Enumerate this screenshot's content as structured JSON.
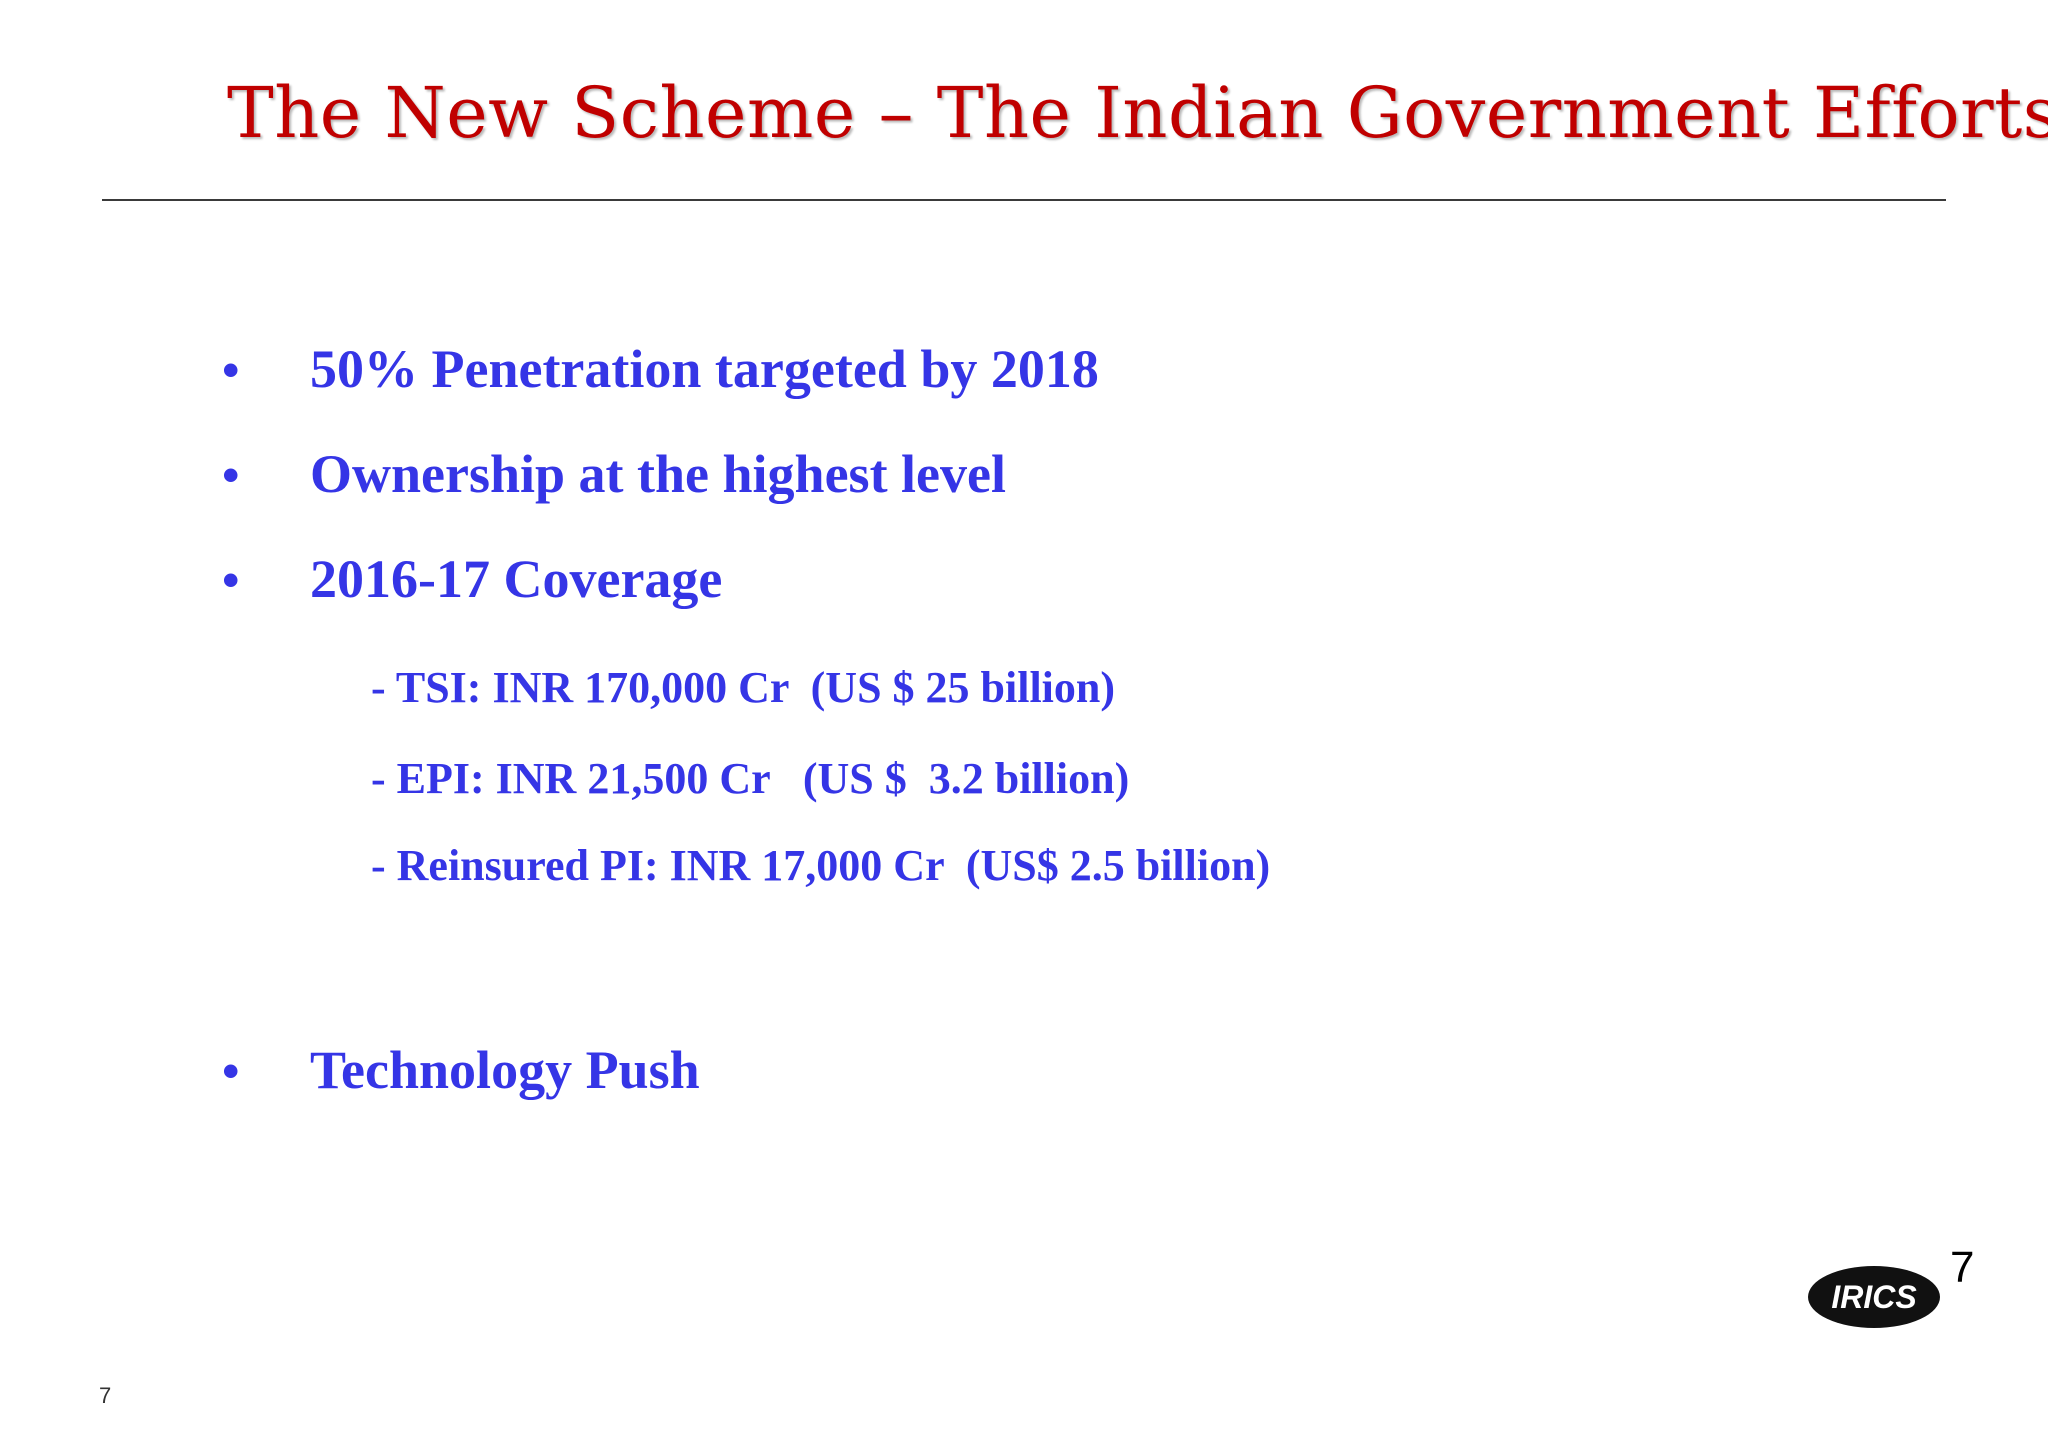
{
  "slide": {
    "title": "The New Scheme – The Indian Government Efforts",
    "bullet_symbol": "•",
    "bullets": [
      "50% Penetration targeted by 2018",
      "Ownership at the highest level",
      "2016-17 Coverage",
      "Technology Push"
    ],
    "sub_items": [
      "- TSI: INR 170,000 Cr  (US $ 25 billion)",
      "- EPI: INR 21,500 Cr   (US $  3.2 billion)",
      "- Reinsured PI: INR 17,000 Cr  (US$ 2.5 billion)"
    ],
    "logo_text": "IRICS",
    "corner_number": "7",
    "page_number": "7"
  },
  "colors": {
    "title": "#c00000",
    "body_text": "#3535e6",
    "rule": "#3a3a3a"
  }
}
